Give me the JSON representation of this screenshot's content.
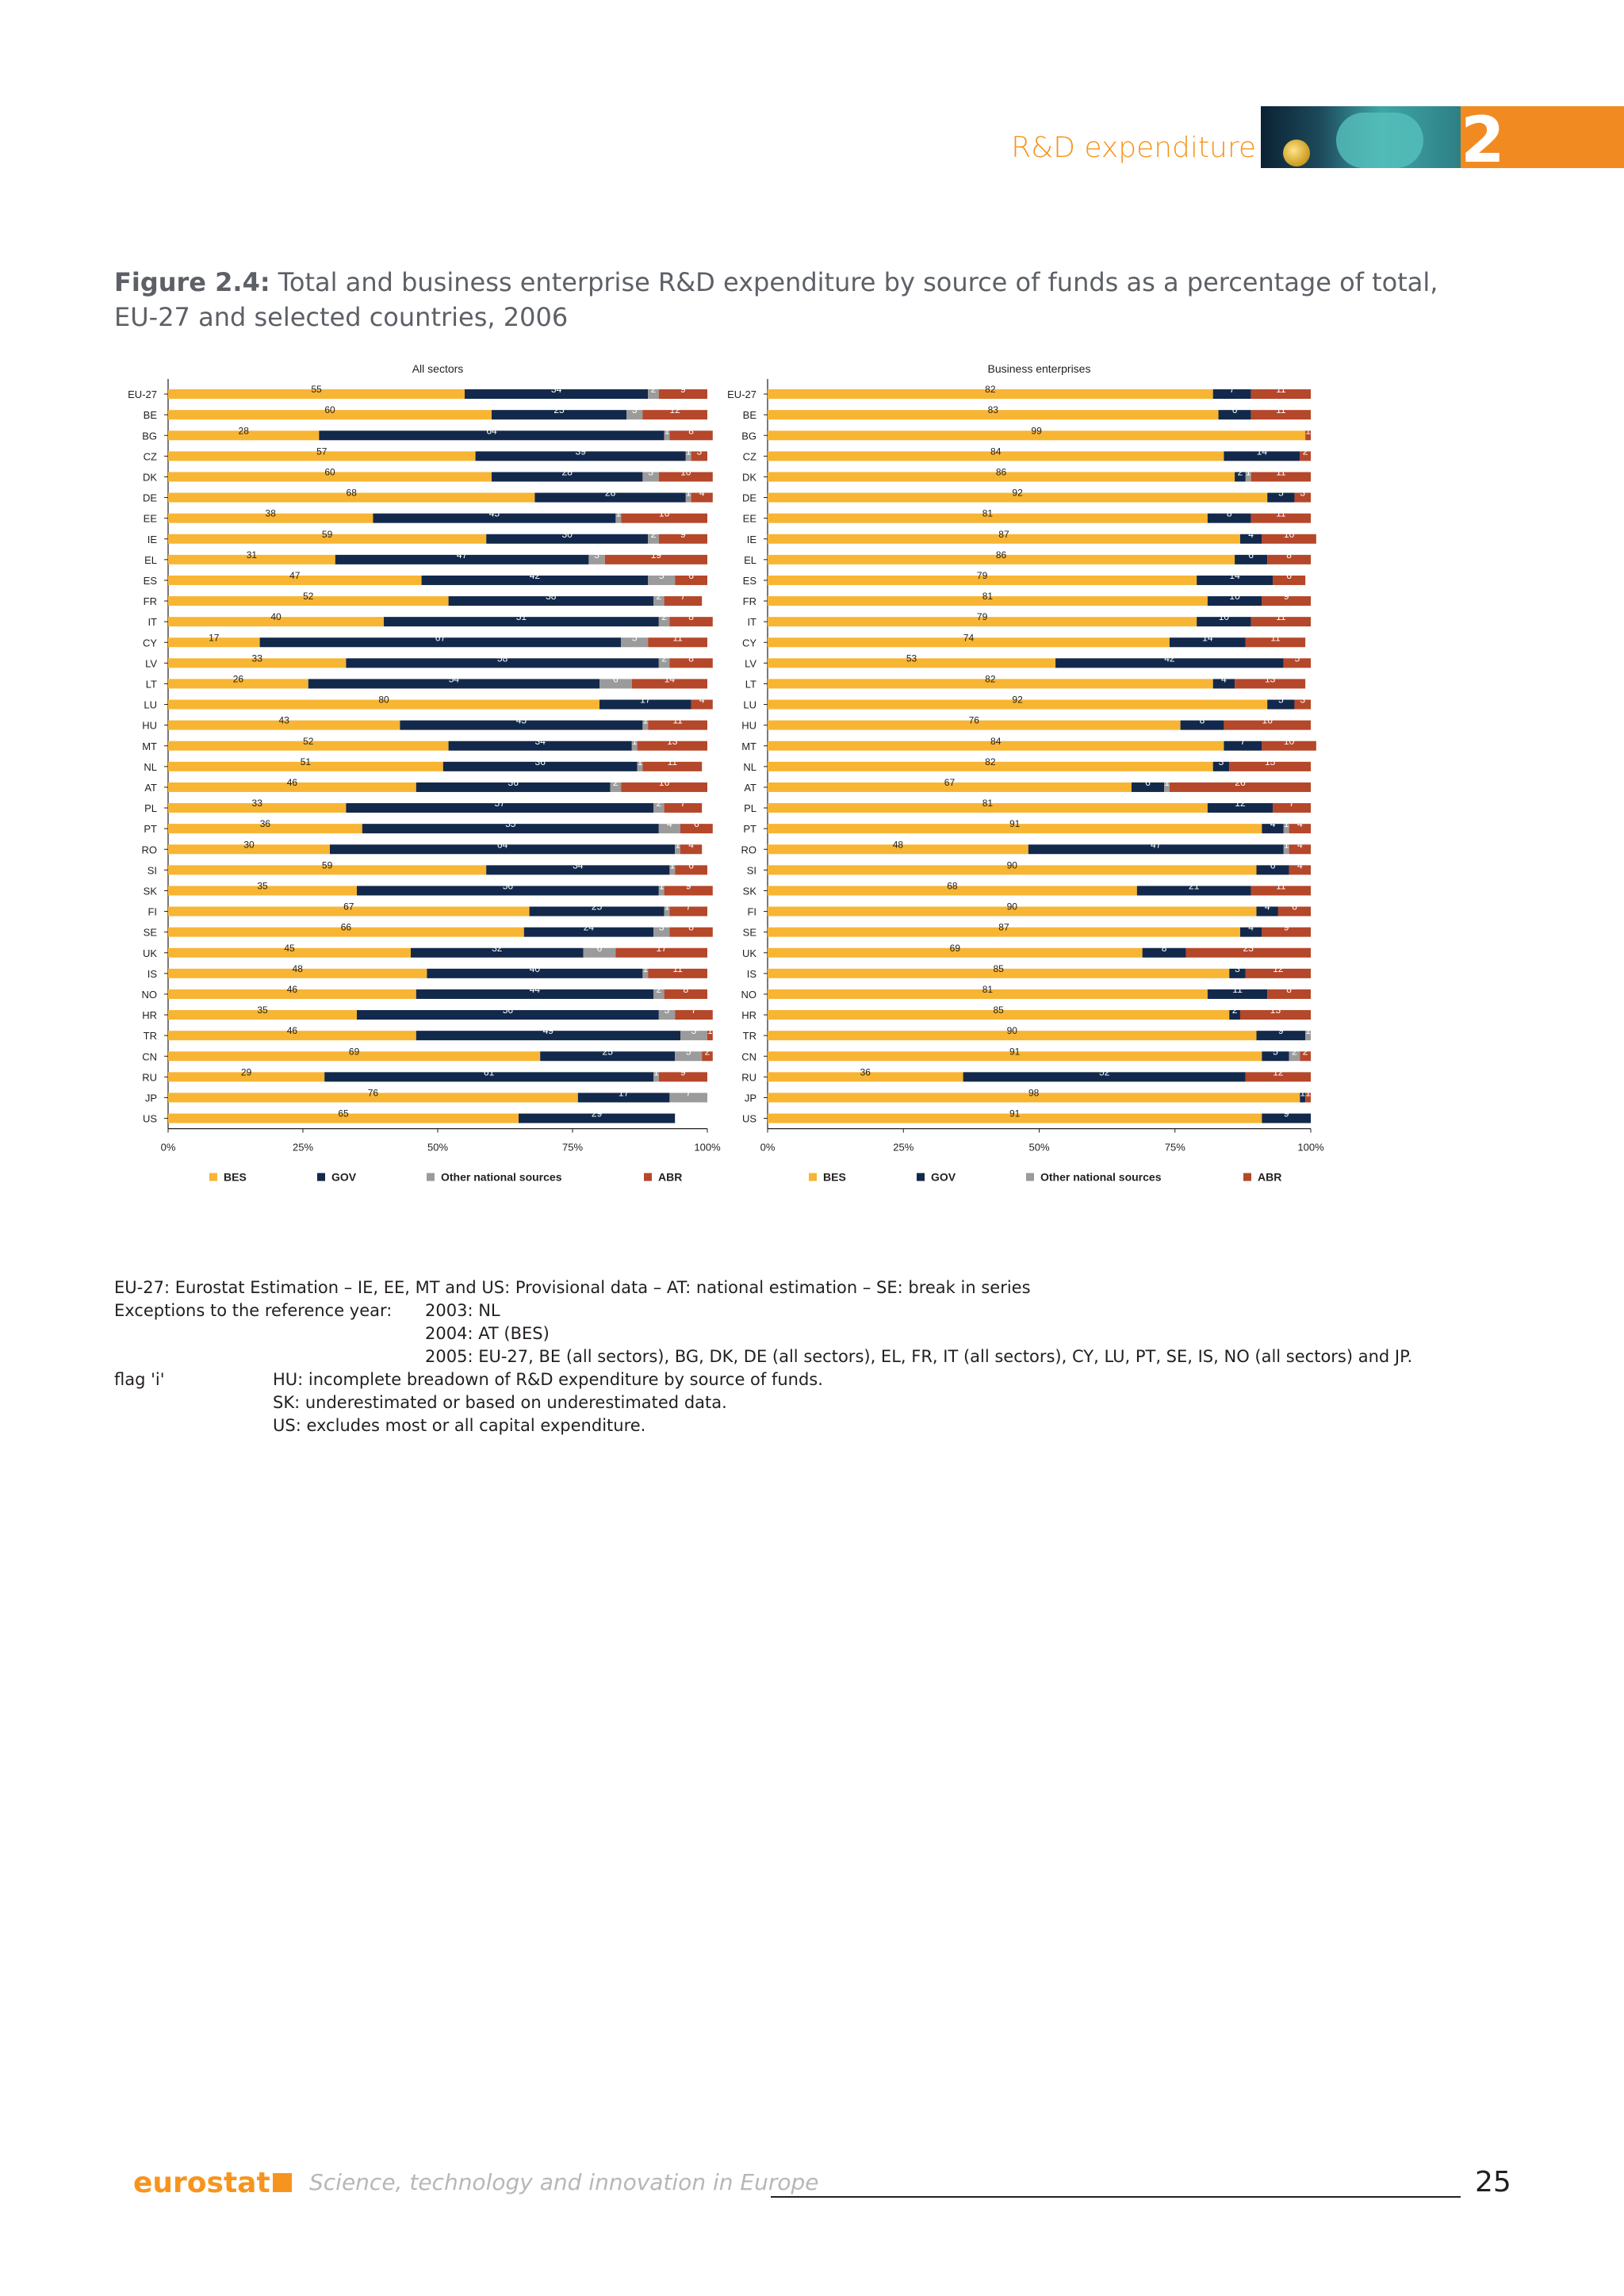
{
  "header": {
    "section_title": "R&D expenditure",
    "chapter_number": "2"
  },
  "figure": {
    "label": "Figure 2.4:",
    "title": "Total and business enterprise R&D expenditure by source of funds as a percentage of total, EU-27 and selected countries, 2006"
  },
  "colors": {
    "BES": "#f7b533",
    "GOV": "#13294b",
    "Other national sources": "#9b9b9b",
    "ABR": "#b5472a"
  },
  "chart_data": [
    {
      "type": "bar",
      "orientation": "horizontal",
      "stacked": true,
      "title": "All sectors",
      "categories": [
        "EU-27",
        "BE",
        "BG",
        "CZ",
        "DK",
        "DE",
        "EE",
        "IE",
        "EL",
        "ES",
        "FR",
        "IT",
        "CY",
        "LV",
        "LT",
        "LU",
        "HU",
        "MT",
        "NL",
        "AT",
        "PL",
        "PT",
        "RO",
        "SI",
        "SK",
        "FI",
        "SE",
        "UK",
        "IS",
        "NO",
        "HR",
        "TR",
        "CN",
        "RU",
        "JP",
        "US"
      ],
      "series": [
        {
          "name": "BES",
          "values": [
            55,
            60,
            28,
            57,
            60,
            68,
            38,
            59,
            31,
            47,
            52,
            40,
            17,
            33,
            26,
            80,
            43,
            52,
            51,
            46,
            33,
            36,
            30,
            59,
            35,
            67,
            66,
            45,
            48,
            46,
            35,
            46,
            69,
            29,
            76,
            65
          ]
        },
        {
          "name": "GOV",
          "values": [
            34,
            25,
            64,
            39,
            28,
            28,
            45,
            30,
            47,
            42,
            38,
            51,
            67,
            58,
            54,
            17,
            45,
            34,
            36,
            36,
            57,
            55,
            64,
            34,
            56,
            25,
            24,
            32,
            40,
            44,
            56,
            49,
            25,
            61,
            17,
            29
          ]
        },
        {
          "name": "Other national sources",
          "values": [
            2,
            3,
            1,
            1,
            3,
            1,
            1,
            2,
            3,
            5,
            2,
            2,
            5,
            2,
            6,
            0,
            1,
            1,
            1,
            2,
            2,
            4,
            1,
            1,
            1,
            1,
            3,
            6,
            1,
            2,
            3,
            5,
            5,
            1,
            7,
            0
          ]
        },
        {
          "name": "ABR",
          "values": [
            9,
            12,
            8,
            3,
            10,
            4,
            16,
            9,
            19,
            6,
            7,
            8,
            11,
            8,
            14,
            4,
            11,
            13,
            11,
            16,
            7,
            6,
            4,
            6,
            9,
            7,
            8,
            17,
            11,
            8,
            7,
            1,
            2,
            9,
            0,
            0
          ]
        }
      ],
      "x_ticks": [
        "0%",
        "25%",
        "50%",
        "75%",
        "100%"
      ],
      "xlim": [
        0,
        100
      ],
      "legend": [
        "BES",
        "GOV",
        "Other national sources",
        "ABR"
      ],
      "legend_position": "bottom"
    },
    {
      "type": "bar",
      "orientation": "horizontal",
      "stacked": true,
      "title": "Business enterprises",
      "categories": [
        "EU-27",
        "BE",
        "BG",
        "CZ",
        "DK",
        "DE",
        "EE",
        "IE",
        "EL",
        "ES",
        "FR",
        "IT",
        "CY",
        "LV",
        "LT",
        "LU",
        "HU",
        "MT",
        "NL",
        "AT",
        "PL",
        "PT",
        "RO",
        "SI",
        "SK",
        "FI",
        "SE",
        "UK",
        "IS",
        "NO",
        "HR",
        "TR",
        "CN",
        "RU",
        "JP",
        "US"
      ],
      "series": [
        {
          "name": "BES",
          "values": [
            82,
            83,
            99,
            84,
            86,
            92,
            81,
            87,
            86,
            79,
            81,
            79,
            74,
            53,
            82,
            92,
            76,
            84,
            82,
            67,
            81,
            91,
            48,
            90,
            68,
            90,
            87,
            69,
            85,
            81,
            85,
            90,
            91,
            36,
            98,
            91
          ]
        },
        {
          "name": "GOV",
          "values": [
            7,
            6,
            0,
            14,
            2,
            5,
            8,
            4,
            6,
            14,
            10,
            10,
            14,
            42,
            4,
            5,
            8,
            7,
            3,
            6,
            12,
            4,
            47,
            6,
            21,
            4,
            4,
            8,
            3,
            11,
            2,
            9,
            5,
            52,
            1,
            9
          ]
        },
        {
          "name": "Other national sources",
          "values": [
            0,
            0,
            0,
            0,
            1,
            0,
            0,
            0,
            0,
            0,
            0,
            0,
            0,
            0,
            0,
            0,
            0,
            0,
            0,
            1,
            0,
            1,
            1,
            0,
            0,
            0,
            0,
            0,
            0,
            0,
            0,
            1,
            2,
            0,
            0,
            0
          ]
        },
        {
          "name": "ABR",
          "values": [
            11,
            11,
            1,
            2,
            11,
            3,
            11,
            10,
            8,
            6,
            9,
            11,
            11,
            5,
            13,
            3,
            16,
            10,
            15,
            26,
            7,
            4,
            4,
            4,
            11,
            6,
            9,
            23,
            12,
            8,
            13,
            0,
            2,
            12,
            1,
            0
          ]
        }
      ],
      "x_ticks": [
        "0%",
        "25%",
        "50%",
        "75%",
        "100%"
      ],
      "xlim": [
        0,
        100
      ],
      "legend": [
        "BES",
        "GOV",
        "Other national sources",
        "ABR"
      ],
      "legend_position": "bottom"
    }
  ],
  "notes": {
    "line1": "EU-27: Eurostat Estimation – IE, EE, MT and US: Provisional data – AT: national estimation – SE: break in series",
    "exceptions_label": "Exceptions to the reference year:",
    "exceptions": [
      "2003: NL",
      "2004: AT (BES)",
      "2005: EU-27, BE (all sectors), BG, DK, DE (all sectors), EL, FR, IT (all sectors), CY, LU, PT, SE, IS, NO (all sectors) and JP."
    ],
    "flag_label": "flag 'i'",
    "flag_lines": [
      "HU: incomplete breadown of R&D expenditure by source of funds.",
      "SK: underestimated or based on underestimated data.",
      "US: excludes most or all capital expenditure."
    ]
  },
  "footer": {
    "logo": "eurostat",
    "publication": "Science, technology and innovation in Europe",
    "page_number": "25"
  }
}
